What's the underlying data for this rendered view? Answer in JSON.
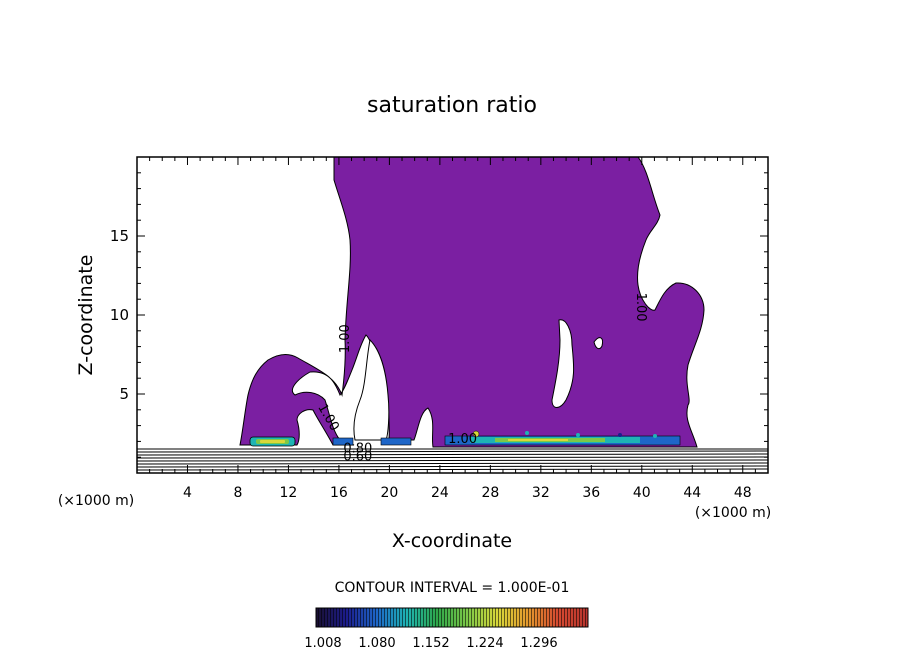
{
  "chart_data": {
    "type": "contour",
    "title": "saturation ratio",
    "xlabel": "X-coordinate",
    "ylabel": "Z-coordinate",
    "x_unit": "(×1000 m)",
    "xlim": [
      0,
      50
    ],
    "ylim": [
      0,
      20
    ],
    "x_ticks": [
      4,
      8,
      12,
      16,
      20,
      24,
      28,
      32,
      36,
      40,
      44,
      48
    ],
    "y_ticks": [
      5,
      10,
      15
    ],
    "fill_color": "#7b1fa2",
    "contour_labels": [
      {
        "text": "1.00",
        "x": 16.8,
        "z": 8.5,
        "rotation": -90
      },
      {
        "text": "1.00",
        "x": 14.9,
        "z": 3.4,
        "rotation": 60
      },
      {
        "text": "1.00",
        "x": 39.6,
        "z": 10.5,
        "rotation": 90
      },
      {
        "text": "1.00",
        "x": 25.8,
        "z": 1.9,
        "rotation": 0
      },
      {
        "text": "0.80",
        "x": 17.5,
        "z": 1.3,
        "rotation": 0
      },
      {
        "text": "0.60",
        "x": 17.5,
        "z": 0.8,
        "rotation": 0
      }
    ],
    "contour_interval_text": "CONTOUR INTERVAL = 1.000E-01",
    "colorbar": {
      "labels": [
        "1.008",
        "1.080",
        "1.152",
        "1.224",
        "1.296"
      ],
      "colors": [
        "#1a1030",
        "#1c1c8c",
        "#1e66c8",
        "#1eb4b4",
        "#2ea84a",
        "#7cc848",
        "#d8d83a",
        "#e49a2e",
        "#d64a30",
        "#b8342e"
      ]
    }
  }
}
